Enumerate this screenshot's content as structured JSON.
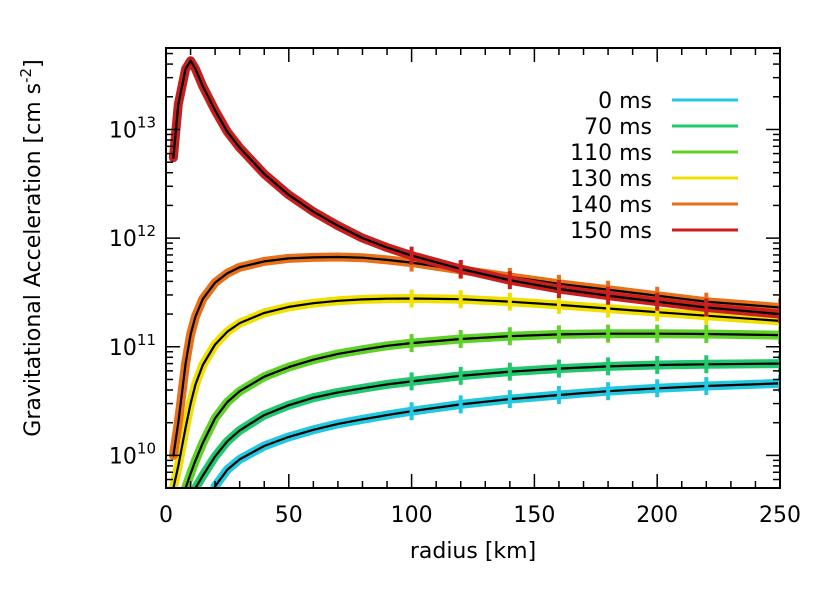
{
  "chart_data": {
    "type": "line",
    "title": "",
    "xlabel": "radius [km]",
    "ylabel": "Gravitational Acceleration [cm s",
    "ylabel_exponent": "-2",
    "ylabel_close": "]",
    "xlim": [
      0,
      250
    ],
    "ylim_log10": [
      9.7,
      13.75
    ],
    "yscale": "log",
    "x_ticks": [
      0,
      50,
      100,
      150,
      200,
      250
    ],
    "x_tick_labels": [
      "0",
      "50",
      "100",
      "150",
      "200",
      "250"
    ],
    "y_ticks_log10": [
      10,
      11,
      12,
      13
    ],
    "y_tick_labels": [
      {
        "base": "10",
        "exp": "10"
      },
      {
        "base": "10",
        "exp": "11"
      },
      {
        "base": "10",
        "exp": "12"
      },
      {
        "base": "10",
        "exp": "13"
      }
    ],
    "legend_position": "top-right",
    "x": [
      3,
      5,
      8,
      10,
      12,
      15,
      20,
      25,
      30,
      40,
      50,
      60,
      70,
      80,
      90,
      100,
      120,
      140,
      160,
      180,
      200,
      220,
      250
    ],
    "series": [
      {
        "name": "0 ms",
        "color": "#22c8e0",
        "values": [
          null,
          null,
          null,
          null,
          null,
          null,
          5200000000.0,
          7400000000.0,
          9200000000.0,
          12200000000.0,
          14800000000.0,
          17200000000.0,
          19500000000.0,
          21500000000.0,
          23500000000.0,
          25500000000.0,
          29500000000.0,
          33000000000.0,
          36000000000.0,
          39000000000.0,
          41500000000.0,
          43500000000.0,
          46000000000.0
        ]
      },
      {
        "name": "70 ms",
        "color": "#22c86e",
        "values": [
          null,
          null,
          null,
          null,
          5000000000.0,
          6500000000.0,
          9800000000.0,
          13500000000.0,
          17000000000.0,
          23500000000.0,
          29000000000.0,
          34000000000.0,
          38000000000.0,
          41500000000.0,
          45000000000.0,
          48000000000.0,
          54000000000.0,
          59000000000.0,
          63000000000.0,
          66000000000.0,
          68000000000.0,
          69000000000.0,
          70000000000.0
        ]
      },
      {
        "name": "110 ms",
        "color": "#5fd22a",
        "values": [
          null,
          null,
          5000000000.0,
          6800000000.0,
          9000000000.0,
          13000000000.0,
          22000000000.0,
          31000000000.0,
          39000000000.0,
          53000000000.0,
          65000000000.0,
          76000000000.0,
          86000000000.0,
          94000000000.0,
          102000000000.0,
          108000000000.0,
          118000000000.0,
          125000000000.0,
          130000000000.0,
          132000000000.0,
          132000000000.0,
          131000000000.0,
          128000000000.0
        ]
      },
      {
        "name": "130 ms",
        "color": "#f0e000",
        "values": [
          5000000000.0,
          8000000000.0,
          18000000000.0,
          30000000000.0,
          45000000000.0,
          68000000000.0,
          105000000000.0,
          138000000000.0,
          165000000000.0,
          205000000000.0,
          233000000000.0,
          252000000000.0,
          265000000000.0,
          273000000000.0,
          277000000000.0,
          278000000000.0,
          274000000000.0,
          260000000000.0,
          243000000000.0,
          225000000000.0,
          208000000000.0,
          193000000000.0,
          173000000000.0
        ]
      },
      {
        "name": "140 ms",
        "color": "#e8701a",
        "values": [
          10000000000.0,
          20000000000.0,
          70000000000.0,
          130000000000.0,
          190000000000.0,
          275000000000.0,
          390000000000.0,
          475000000000.0,
          540000000000.0,
          610000000000.0,
          650000000000.0,
          665000000000.0,
          670000000000.0,
          660000000000.0,
          630000000000.0,
          595000000000.0,
          510000000000.0,
          440000000000.0,
          380000000000.0,
          335000000000.0,
          295000000000.0,
          260000000000.0,
          230000000000.0
        ]
      },
      {
        "name": "150 ms",
        "color": "#c81e1e",
        "values": [
          5500000000000.0,
          17000000000000.0,
          36000000000000.0,
          43000000000000.0,
          36000000000000.0,
          25000000000000.0,
          15000000000000.0,
          9500000000000.0,
          6800000000000.0,
          3900000000000.0,
          2500000000000.0,
          1750000000000.0,
          1300000000000.0,
          1000000000000.0,
          820000000000.0,
          690000000000.0,
          520000000000.0,
          410000000000.0,
          340000000000.0,
          295000000000.0,
          260000000000.0,
          230000000000.0,
          200000000000.0
        ]
      }
    ]
  }
}
